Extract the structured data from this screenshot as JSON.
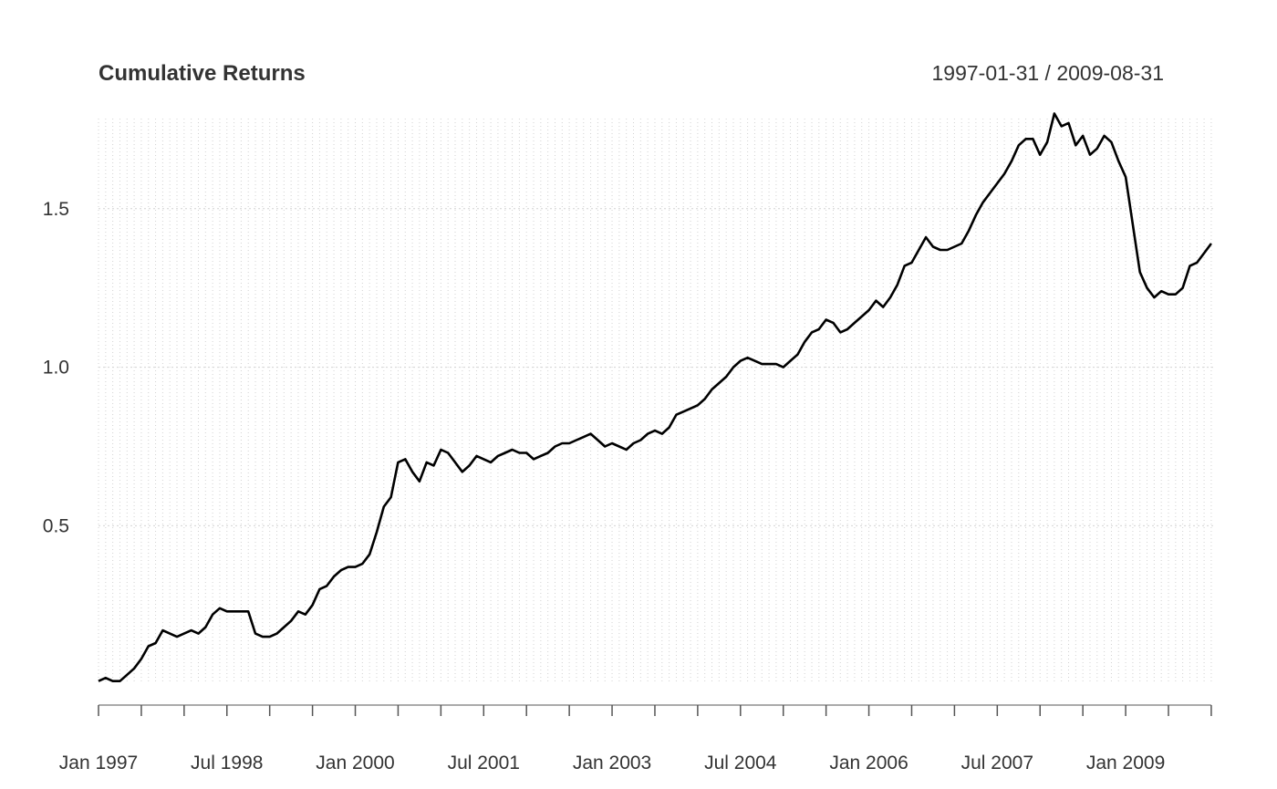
{
  "chart_data": {
    "type": "line",
    "title": "Cumulative Returns",
    "date_range": "1997-01-31 / 2009-08-31",
    "xlabel": "",
    "ylabel": "",
    "ylim": [
      -0.05,
      1.82
    ],
    "y_ticks": [
      0.5,
      1.0,
      1.5
    ],
    "y_tick_labels": [
      "0.5",
      "1.0",
      "1.5"
    ],
    "x_tick_labels": [
      "Jan 1997",
      "Jul 1998",
      "Jan 2000",
      "Jul 2001",
      "Jan 2003",
      "Jul 2004",
      "Jan 2006",
      "Jul 2007",
      "Jan 2009"
    ],
    "grid": true,
    "line_color": "#000000",
    "series": [
      {
        "start": "1997-01",
        "frequency": "monthly",
        "values": [
          0.01,
          0.02,
          0.01,
          0.01,
          0.03,
          0.05,
          0.08,
          0.12,
          0.13,
          0.17,
          0.16,
          0.15,
          0.16,
          0.17,
          0.16,
          0.18,
          0.22,
          0.24,
          0.23,
          0.23,
          0.23,
          0.23,
          0.16,
          0.15,
          0.15,
          0.16,
          0.18,
          0.2,
          0.23,
          0.22,
          0.25,
          0.3,
          0.31,
          0.34,
          0.36,
          0.37,
          0.37,
          0.38,
          0.41,
          0.48,
          0.56,
          0.59,
          0.7,
          0.71,
          0.67,
          0.64,
          0.7,
          0.69,
          0.74,
          0.73,
          0.7,
          0.67,
          0.69,
          0.72,
          0.71,
          0.7,
          0.72,
          0.73,
          0.74,
          0.73,
          0.73,
          0.71,
          0.72,
          0.73,
          0.75,
          0.76,
          0.76,
          0.77,
          0.78,
          0.79,
          0.77,
          0.75,
          0.76,
          0.75,
          0.74,
          0.76,
          0.77,
          0.79,
          0.8,
          0.79,
          0.81,
          0.85,
          0.86,
          0.87,
          0.88,
          0.9,
          0.93,
          0.95,
          0.97,
          1.0,
          1.02,
          1.03,
          1.02,
          1.01,
          1.01,
          1.01,
          1.0,
          1.02,
          1.04,
          1.08,
          1.11,
          1.12,
          1.15,
          1.14,
          1.11,
          1.12,
          1.14,
          1.16,
          1.18,
          1.21,
          1.19,
          1.22,
          1.26,
          1.32,
          1.33,
          1.37,
          1.41,
          1.38,
          1.37,
          1.37,
          1.38,
          1.39,
          1.43,
          1.48,
          1.52,
          1.55,
          1.58,
          1.61,
          1.65,
          1.7,
          1.72,
          1.72,
          1.67,
          1.71,
          1.8,
          1.76,
          1.77,
          1.7,
          1.73,
          1.67,
          1.69,
          1.73,
          1.71,
          1.65,
          1.6,
          1.45,
          1.3,
          1.25,
          1.22,
          1.24,
          1.23,
          1.23,
          1.25,
          1.32,
          1.33,
          1.36,
          1.39
        ]
      }
    ]
  }
}
